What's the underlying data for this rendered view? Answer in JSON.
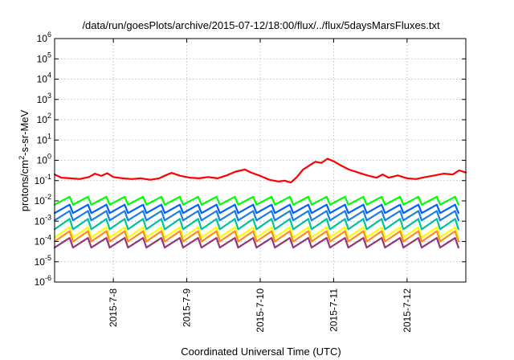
{
  "chart_data": {
    "type": "line",
    "title": "/data/run/goesPlots/archive/2015-07-12/18:00/flux/../flux/5daysMarsFluxes.txt",
    "xlabel": "Coordinated Universal Time (UTC)",
    "ylabel": {
      "pre": "protons/cm",
      "sup": "2",
      "post": "-s-sr-MeV"
    },
    "x_range": [
      "2015-07-07 04:48",
      "2015-07-12 19:12"
    ],
    "x_ticks": [
      {
        "at": "2015-07-08 00:00",
        "label": "2015-7-8"
      },
      {
        "at": "2015-07-09 00:00",
        "label": "2015-7-9"
      },
      {
        "at": "2015-07-10 00:00",
        "label": "2015-7-10"
      },
      {
        "at": "2015-07-11 00:00",
        "label": "2015-7-11"
      },
      {
        "at": "2015-07-12 00:00",
        "label": "2015-7-12"
      }
    ],
    "y_scale": "log",
    "ylim": [
      1e-06,
      1000000.0
    ],
    "y_ticks": [
      {
        "value": 1000000.0,
        "base": "10",
        "exp": "6"
      },
      {
        "value": 100000.0,
        "base": "10",
        "exp": "5"
      },
      {
        "value": 10000.0,
        "base": "10",
        "exp": "4"
      },
      {
        "value": 1000.0,
        "base": "10",
        "exp": "3"
      },
      {
        "value": 100.0,
        "base": "10",
        "exp": "2"
      },
      {
        "value": 10.0,
        "base": "10",
        "exp": "1"
      },
      {
        "value": 1.0,
        "base": "10",
        "exp": "0"
      },
      {
        "value": 0.1,
        "base": "10",
        "exp": "-1"
      },
      {
        "value": 0.01,
        "base": "10",
        "exp": "-2"
      },
      {
        "value": 0.001,
        "base": "10",
        "exp": "-3"
      },
      {
        "value": 0.0001,
        "base": "10",
        "exp": "-4"
      },
      {
        "value": 1e-05,
        "base": "10",
        "exp": "-5"
      },
      {
        "value": 1e-06,
        "base": "10",
        "exp": "-6"
      }
    ],
    "grid": true,
    "series": [
      {
        "color": "#ff0000",
        "points": [
          [
            "2015-07-07 04:48",
            0.2
          ],
          [
            "2015-07-07 07:00",
            0.14
          ],
          [
            "2015-07-07 10:00",
            0.13
          ],
          [
            "2015-07-07 13:00",
            0.12
          ],
          [
            "2015-07-07 16:00",
            0.15
          ],
          [
            "2015-07-07 18:00",
            0.22
          ],
          [
            "2015-07-07 20:00",
            0.17
          ],
          [
            "2015-07-07 22:00",
            0.23
          ],
          [
            "2015-07-08 00:00",
            0.15
          ],
          [
            "2015-07-08 03:00",
            0.13
          ],
          [
            "2015-07-08 06:00",
            0.12
          ],
          [
            "2015-07-08 09:00",
            0.13
          ],
          [
            "2015-07-08 12:00",
            0.11
          ],
          [
            "2015-07-08 15:00",
            0.13
          ],
          [
            "2015-07-08 17:00",
            0.18
          ],
          [
            "2015-07-08 19:00",
            0.24
          ],
          [
            "2015-07-08 22:00",
            0.17
          ],
          [
            "2015-07-09 01:00",
            0.14
          ],
          [
            "2015-07-09 04:00",
            0.13
          ],
          [
            "2015-07-09 07:00",
            0.15
          ],
          [
            "2015-07-09 10:00",
            0.13
          ],
          [
            "2015-07-09 13:00",
            0.18
          ],
          [
            "2015-07-09 16:00",
            0.28
          ],
          [
            "2015-07-09 19:00",
            0.35
          ],
          [
            "2015-07-09 21:00",
            0.25
          ],
          [
            "2015-07-10 00:00",
            0.17
          ],
          [
            "2015-07-10 03:00",
            0.11
          ],
          [
            "2015-07-10 06:00",
            0.09
          ],
          [
            "2015-07-10 08:00",
            0.1
          ],
          [
            "2015-07-10 10:00",
            0.08
          ],
          [
            "2015-07-10 12:00",
            0.15
          ],
          [
            "2015-07-10 14:00",
            0.35
          ],
          [
            "2015-07-10 16:00",
            0.55
          ],
          [
            "2015-07-10 18:00",
            0.85
          ],
          [
            "2015-07-10 20:00",
            0.75
          ],
          [
            "2015-07-10 22:00",
            1.2
          ],
          [
            "2015-07-11 00:00",
            0.9
          ],
          [
            "2015-07-11 02:00",
            0.6
          ],
          [
            "2015-07-11 05:00",
            0.35
          ],
          [
            "2015-07-11 08:00",
            0.25
          ],
          [
            "2015-07-11 11:00",
            0.18
          ],
          [
            "2015-07-11 14:00",
            0.14
          ],
          [
            "2015-07-11 16:00",
            0.2
          ],
          [
            "2015-07-11 18:00",
            0.14
          ],
          [
            "2015-07-11 21:00",
            0.18
          ],
          [
            "2015-07-12 00:00",
            0.13
          ],
          [
            "2015-07-12 03:00",
            0.12
          ],
          [
            "2015-07-12 06:00",
            0.15
          ],
          [
            "2015-07-12 09:00",
            0.18
          ],
          [
            "2015-07-12 12:00",
            0.22
          ],
          [
            "2015-07-12 15:00",
            0.2
          ],
          [
            "2015-07-12 17:00",
            0.32
          ],
          [
            "2015-07-12 19:12",
            0.25
          ]
        ]
      },
      {
        "color": "#00ff00",
        "oscillation": {
          "period_hours": 6,
          "high": 0.016,
          "low": 0.0065
        }
      },
      {
        "color": "#0060ff",
        "oscillation": {
          "period_hours": 6,
          "high": 0.0065,
          "low": 0.0025
        }
      },
      {
        "color": "#1a7fdc",
        "oscillation": {
          "period_hours": 6,
          "high": 0.0032,
          "low": 0.0011
        }
      },
      {
        "color": "#00c0a0",
        "oscillation": {
          "period_hours": 6,
          "high": 0.0013,
          "low": 0.0004
        }
      },
      {
        "color": "#ffff00",
        "oscillation": {
          "period_hours": 6,
          "high": 0.0005,
          "low": 0.00016
        }
      },
      {
        "color": "#ff8c1a",
        "oscillation": {
          "period_hours": 6,
          "high": 0.00032,
          "low": 0.0001
        }
      },
      {
        "color": "#8e3a7a",
        "oscillation": {
          "period_hours": 6,
          "high": 0.00015,
          "low": 5e-05
        }
      }
    ]
  }
}
